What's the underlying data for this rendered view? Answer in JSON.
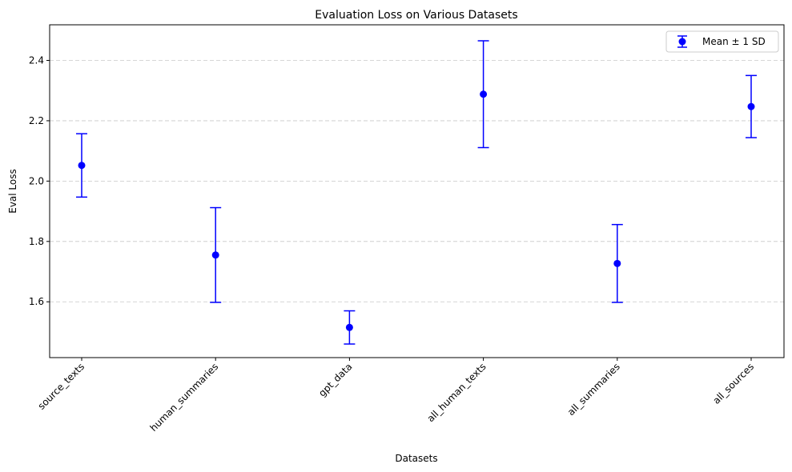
{
  "chart_data": {
    "type": "scatter",
    "title": "Evaluation Loss on Various Datasets",
    "xlabel": "Datasets",
    "ylabel": "Eval Loss",
    "categories": [
      "source_texts",
      "human_summaries",
      "gpt_data",
      "all_human_texts",
      "all_summaries",
      "all_sources"
    ],
    "series": [
      {
        "name": "Mean ± 1 SD",
        "values": [
          2.052,
          1.755,
          1.515,
          2.288,
          1.727,
          2.247
        ],
        "errors": [
          0.105,
          0.157,
          0.055,
          0.177,
          0.129,
          0.103
        ],
        "color": "#0000ff"
      }
    ],
    "ylim": [
      1.415,
      2.518
    ],
    "yticks": [
      1.6,
      1.8,
      2.0,
      2.2,
      2.4
    ],
    "ytick_labels": [
      "1.6",
      "1.8",
      "2.0",
      "2.2",
      "2.4"
    ],
    "grid": "y-dashed",
    "legend": "top-right"
  }
}
